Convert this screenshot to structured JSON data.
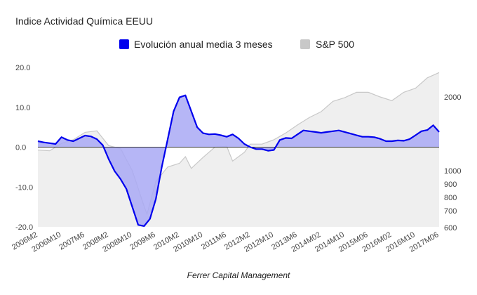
{
  "chart_data": {
    "type": "area",
    "title": "Indice Actividad Química EEUU",
    "caption": "Ferrer Capital Management",
    "legend_position": "top-center",
    "grid": false,
    "x_tick_labels": [
      "2006M2",
      "2006M10",
      "2007M6",
      "2008M2",
      "2008M10",
      "2009M6",
      "2010M2",
      "2010M10",
      "2011M6",
      "2012M2",
      "2012M10",
      "2013M6",
      "2014M02",
      "2014M10",
      "2015M06",
      "2016M02",
      "2016M10",
      "2017M06"
    ],
    "y_left": {
      "ylim": [
        -20,
        20
      ],
      "tick_labels": [
        "20.0",
        "10.0",
        "0.0",
        "-10.0",
        "-20.0"
      ]
    },
    "y_right": {
      "tick_labels": [
        "2000",
        "1000",
        "900",
        "800",
        "700",
        "600"
      ]
    },
    "series": [
      {
        "name": "Evolución anual media 3 meses",
        "axis": "left",
        "color": "#0000ee",
        "fill": "#a9a9f5",
        "points": [
          [
            "2006M2",
            1.5
          ],
          [
            "2006M4",
            1.2
          ],
          [
            "2006M6",
            1.0
          ],
          [
            "2006M8",
            0.8
          ],
          [
            "2006M10",
            2.5
          ],
          [
            "2006M12",
            1.8
          ],
          [
            "2007M2",
            1.5
          ],
          [
            "2007M4",
            2.2
          ],
          [
            "2007M6",
            2.9
          ],
          [
            "2007M8",
            2.7
          ],
          [
            "2007M10",
            2.0
          ],
          [
            "2007M12",
            0.5
          ],
          [
            "2008M2",
            -3.0
          ],
          [
            "2008M4",
            -6.0
          ],
          [
            "2008M6",
            -8.0
          ],
          [
            "2008M8",
            -10.5
          ],
          [
            "2008M10",
            -15.0
          ],
          [
            "2008M12",
            -19.5
          ],
          [
            "2009M2",
            -19.8
          ],
          [
            "2009M4",
            -18.0
          ],
          [
            "2009M6",
            -13.0
          ],
          [
            "2009M8",
            -5.0
          ],
          [
            "2009M10",
            2.0
          ],
          [
            "2009M12",
            9.0
          ],
          [
            "2010M2",
            12.5
          ],
          [
            "2010M4",
            13.0
          ],
          [
            "2010M6",
            9.0
          ],
          [
            "2010M8",
            5.0
          ],
          [
            "2010M10",
            3.5
          ],
          [
            "2010M12",
            3.2
          ],
          [
            "2011M2",
            3.3
          ],
          [
            "2011M4",
            3.0
          ],
          [
            "2011M6",
            2.6
          ],
          [
            "2011M8",
            3.2
          ],
          [
            "2011M10",
            2.2
          ],
          [
            "2011M12",
            0.8
          ],
          [
            "2012M2",
            0.0
          ],
          [
            "2012M4",
            -0.5
          ],
          [
            "2012M6",
            -0.5
          ],
          [
            "2012M8",
            -0.9
          ],
          [
            "2012M10",
            -0.7
          ],
          [
            "2012M12",
            1.8
          ],
          [
            "2013M2",
            2.3
          ],
          [
            "2013M4",
            2.2
          ],
          [
            "2013M6",
            3.2
          ],
          [
            "2013M8",
            4.2
          ],
          [
            "2013M10",
            4.0
          ],
          [
            "2013M12",
            3.8
          ],
          [
            "2014M02",
            3.6
          ],
          [
            "2014M04",
            3.8
          ],
          [
            "2014M06",
            4.0
          ],
          [
            "2014M08",
            4.2
          ],
          [
            "2014M10",
            3.8
          ],
          [
            "2014M12",
            3.4
          ],
          [
            "2015M02",
            3.0
          ],
          [
            "2015M04",
            2.6
          ],
          [
            "2015M06",
            2.6
          ],
          [
            "2015M08",
            2.5
          ],
          [
            "2015M10",
            2.1
          ],
          [
            "2015M12",
            1.5
          ],
          [
            "2016M02",
            1.5
          ],
          [
            "2016M04",
            1.7
          ],
          [
            "2016M06",
            1.6
          ],
          [
            "2016M08",
            2.0
          ],
          [
            "2016M10",
            3.0
          ],
          [
            "2016M12",
            4.0
          ],
          [
            "2017M02",
            4.3
          ],
          [
            "2017M04",
            5.5
          ],
          [
            "2017M06",
            3.8
          ]
        ]
      },
      {
        "name": "S&P 500",
        "axis": "right",
        "color": "#c8c8c8",
        "fill": "#efefef",
        "points": [
          [
            "2006M2",
            1280
          ],
          [
            "2006M6",
            1270
          ],
          [
            "2006M10",
            1370
          ],
          [
            "2007M2",
            1420
          ],
          [
            "2007M6",
            1520
          ],
          [
            "2007M10",
            1540
          ],
          [
            "2008M2",
            1340
          ],
          [
            "2008M6",
            1300
          ],
          [
            "2008M10",
            1000
          ],
          [
            "2009M2",
            735
          ],
          [
            "2009M3",
            680
          ],
          [
            "2009M6",
            920
          ],
          [
            "2009M10",
            1050
          ],
          [
            "2010M2",
            1100
          ],
          [
            "2010M4",
            1190
          ],
          [
            "2010M6",
            1030
          ],
          [
            "2010M10",
            1180
          ],
          [
            "2011M2",
            1320
          ],
          [
            "2011M6",
            1330
          ],
          [
            "2011M8",
            1130
          ],
          [
            "2011M12",
            1250
          ],
          [
            "2012M2",
            1360
          ],
          [
            "2012M6",
            1360
          ],
          [
            "2012M10",
            1420
          ],
          [
            "2013M2",
            1510
          ],
          [
            "2013M6",
            1620
          ],
          [
            "2013M10",
            1720
          ],
          [
            "2014M02",
            1800
          ],
          [
            "2014M06",
            1940
          ],
          [
            "2014M10",
            1990
          ],
          [
            "2015M02",
            2080
          ],
          [
            "2015M06",
            2080
          ],
          [
            "2015M10",
            2000
          ],
          [
            "2016M02",
            1950
          ],
          [
            "2016M06",
            2080
          ],
          [
            "2016M10",
            2150
          ],
          [
            "2017M02",
            2330
          ],
          [
            "2017M06",
            2420
          ]
        ]
      }
    ]
  }
}
